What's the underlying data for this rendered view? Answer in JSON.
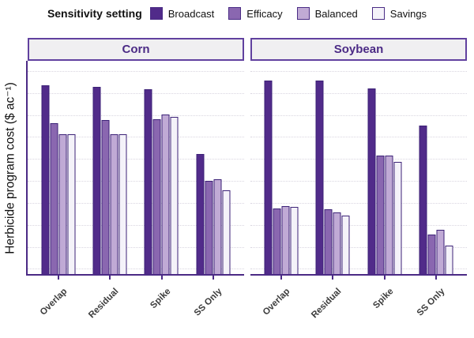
{
  "legend": {
    "title": "Sensitivity setting",
    "items": [
      {
        "label": "Broadcast",
        "color": "#512b8a"
      },
      {
        "label": "Efficacy",
        "color": "#8a67b0"
      },
      {
        "label": "Balanced",
        "color": "#c0aad5"
      },
      {
        "label": "Savings",
        "color": "#f4f2f9"
      }
    ]
  },
  "y_axis": {
    "title": "Herbicide program cost ($ ac⁻¹)",
    "numeric_tick_labels_visible": false
  },
  "colors": {
    "axis": "#4b2a85",
    "bar_outline": "#3c2277",
    "strip_fill": "#f0eff1",
    "strip_border": "#61419f",
    "strip_text": "#4b2a85",
    "gridline": "#d9d5e0",
    "x_label_text": "#3c3c3c"
  },
  "chart_data": {
    "type": "bar",
    "title": "",
    "xlabel": "",
    "ylabel": "Herbicide program cost ($ ac⁻¹)",
    "legend_title": "Sensitivity setting",
    "legend_position": "top",
    "grid": "horizontal dotted, no y tick labels shown",
    "note": "Faceted grouped bar chart; y axis shows no numbers, values estimated in gridline units (one dotted gridline = 10 units)",
    "ylim": [
      0,
      97
    ],
    "gridline_values": [
      2,
      12,
      22,
      32,
      42,
      52,
      62,
      72,
      82,
      92
    ],
    "categories": [
      "Overlap",
      "Residual",
      "Spike",
      "SS Only"
    ],
    "group_centers_pct": [
      14.3,
      38.1,
      61.9,
      85.7
    ],
    "facets": [
      {
        "name": "Corn",
        "series": [
          {
            "name": "Broadcast",
            "values": [
              86,
              85,
              84,
              54.5
            ]
          },
          {
            "name": "Efficacy",
            "values": [
              68.5,
              70,
              70.5,
              42.5
            ]
          },
          {
            "name": "Balanced",
            "values": [
              63.5,
              63.5,
              72.5,
              43
            ]
          },
          {
            "name": "Savings",
            "values": [
              63.5,
              63.5,
              71.5,
              38
            ]
          }
        ]
      },
      {
        "name": "Soybean",
        "series": [
          {
            "name": "Broadcast",
            "values": [
              88,
              88,
              84.5,
              67.5
            ]
          },
          {
            "name": "Efficacy",
            "values": [
              30,
              29.5,
              54,
              18
            ]
          },
          {
            "name": "Balanced",
            "values": [
              31,
              28,
              54,
              20
            ]
          },
          {
            "name": "Savings",
            "values": [
              30.5,
              26.5,
              51,
              13
            ]
          }
        ]
      }
    ]
  }
}
